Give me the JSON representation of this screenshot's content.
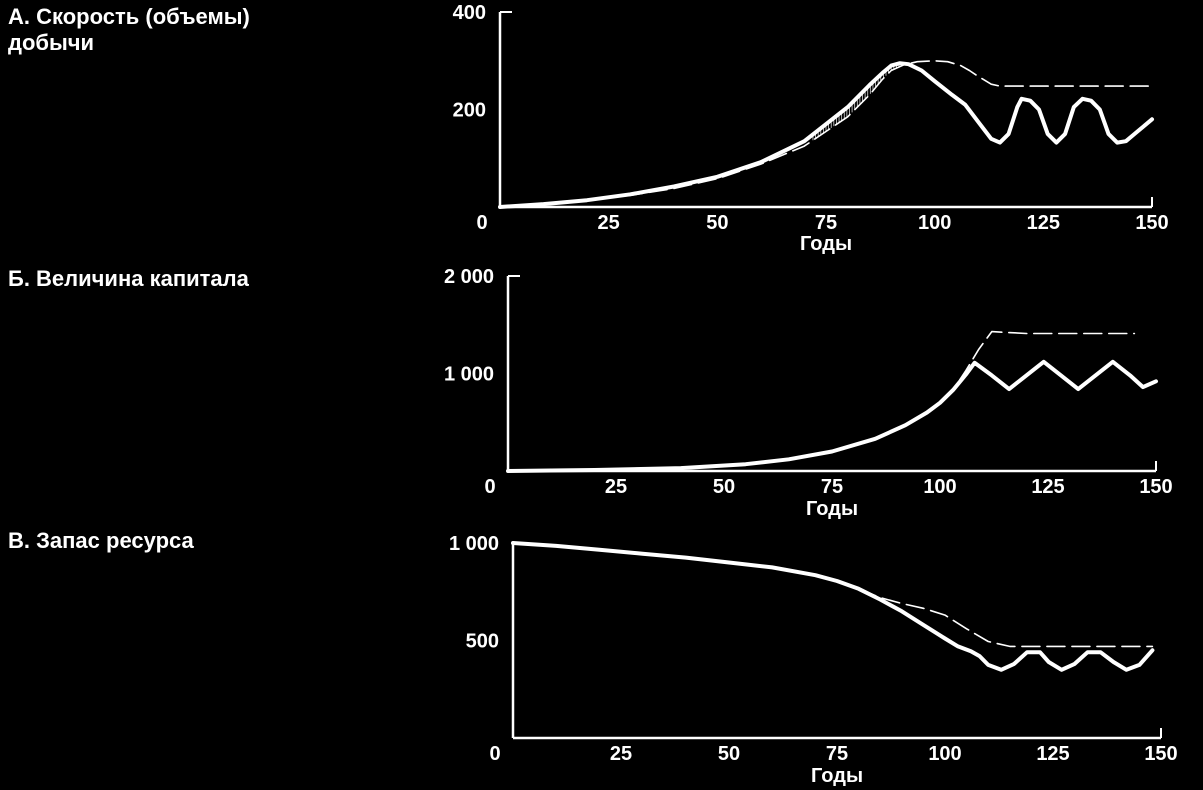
{
  "chart_data": [
    {
      "type": "line",
      "title": "А. Скорость (объемы)\nдобычи",
      "xlabel": "Годы",
      "ylabel": "",
      "xlim": [
        0,
        150
      ],
      "ylim": [
        0,
        400
      ],
      "x_ticks": [
        "0",
        "25",
        "50",
        "75",
        "100",
        "125",
        "150"
      ],
      "y_ticks": [
        "200",
        "400"
      ],
      "shaded_region": {
        "x_from": 72,
        "x_to": 93
      },
      "series": [
        {
          "style": "solid",
          "x": [
            0,
            10,
            20,
            30,
            40,
            50,
            60,
            70,
            80,
            85,
            88,
            90,
            92,
            94,
            97,
            100,
            104,
            107,
            110,
            113,
            115,
            117,
            119,
            120,
            122,
            124,
            126,
            128,
            130,
            132,
            134,
            136,
            138,
            140,
            142,
            144,
            146,
            148,
            150
          ],
          "y": [
            0,
            6,
            14,
            26,
            42,
            62,
            92,
            135,
            205,
            250,
            275,
            290,
            295,
            293,
            280,
            258,
            230,
            210,
            175,
            140,
            132,
            150,
            205,
            222,
            218,
            200,
            150,
            132,
            150,
            205,
            222,
            218,
            200,
            150,
            132,
            135,
            150,
            165,
            180
          ]
        },
        {
          "style": "dashed",
          "x": [
            0,
            10,
            20,
            30,
            40,
            50,
            60,
            70,
            80,
            85,
            88,
            90,
            93,
            96,
            100,
            103,
            106,
            108,
            110,
            113,
            115,
            120,
            130,
            140,
            150
          ],
          "y": [
            0,
            6,
            14,
            24,
            38,
            58,
            88,
            125,
            185,
            230,
            262,
            280,
            292,
            298,
            300,
            298,
            290,
            280,
            268,
            252,
            248,
            248,
            248,
            248,
            248
          ]
        }
      ]
    },
    {
      "type": "line",
      "title": "Б. Величина капитала",
      "xlabel": "Годы",
      "ylabel": "",
      "xlim": [
        0,
        150
      ],
      "ylim": [
        0,
        2000
      ],
      "x_ticks": [
        "0",
        "25",
        "50",
        "75",
        "100",
        "125",
        "150"
      ],
      "y_ticks": [
        "1 000",
        "2 000"
      ],
      "series": [
        {
          "style": "solid",
          "x": [
            0,
            20,
            40,
            55,
            65,
            75,
            85,
            92,
            97,
            100,
            103,
            106,
            108,
            112,
            116,
            120,
            124,
            128,
            132,
            136,
            140,
            144,
            147,
            150
          ],
          "y": [
            0,
            10,
            30,
            70,
            120,
            200,
            330,
            470,
            600,
            700,
            830,
            990,
            1110,
            980,
            840,
            980,
            1120,
            980,
            840,
            980,
            1120,
            980,
            860,
            920
          ]
        },
        {
          "style": "dashed",
          "x": [
            0,
            20,
            40,
            55,
            65,
            75,
            85,
            92,
            97,
            100,
            103,
            106,
            109,
            112,
            120,
            130,
            140,
            145
          ],
          "y": [
            0,
            10,
            30,
            70,
            120,
            200,
            330,
            470,
            600,
            700,
            830,
            1030,
            1250,
            1430,
            1410,
            1410,
            1410,
            1410
          ]
        }
      ]
    },
    {
      "type": "line",
      "title": "В. Запас ресурса",
      "xlabel": "Годы",
      "ylabel": "",
      "xlim": [
        0,
        150
      ],
      "ylim": [
        0,
        1000
      ],
      "x_ticks": [
        "0",
        "25",
        "50",
        "75",
        "100",
        "125",
        "150"
      ],
      "y_ticks": [
        "500",
        "1 000"
      ],
      "series": [
        {
          "style": "solid",
          "x": [
            0,
            10,
            20,
            30,
            40,
            50,
            60,
            70,
            75,
            80,
            85,
            90,
            95,
            100,
            103,
            106,
            108,
            110,
            113,
            116,
            119,
            122,
            124,
            127,
            130,
            133,
            136,
            139,
            142,
            145,
            148
          ],
          "y": [
            1000,
            985,
            965,
            945,
            925,
            900,
            875,
            835,
            805,
            765,
            710,
            650,
            580,
            510,
            470,
            445,
            420,
            375,
            350,
            380,
            440,
            440,
            390,
            350,
            380,
            440,
            440,
            390,
            350,
            375,
            450
          ]
        },
        {
          "style": "dashed",
          "x": [
            0,
            10,
            20,
            30,
            40,
            50,
            60,
            70,
            75,
            80,
            85,
            90,
            95,
            100,
            105,
            110,
            115,
            120,
            130,
            140,
            148
          ],
          "y": [
            1000,
            985,
            965,
            945,
            925,
            900,
            875,
            835,
            805,
            765,
            720,
            690,
            665,
            630,
            560,
            495,
            470,
            470,
            470,
            470,
            470
          ]
        }
      ]
    }
  ]
}
